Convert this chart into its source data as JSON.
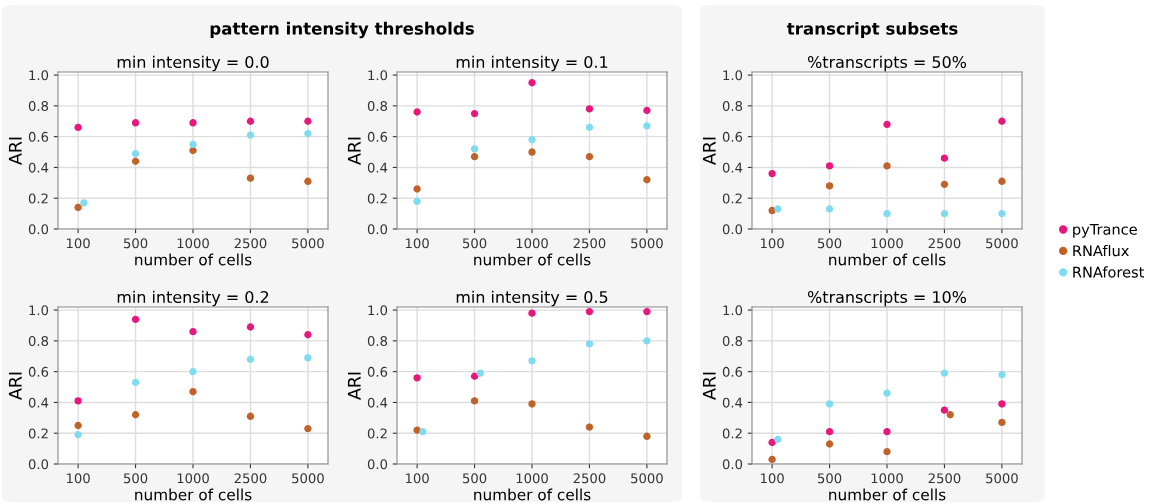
{
  "chart_data": [
    {
      "type": "scatter",
      "title": "min intensity = 0.0",
      "xlabel": "number of cells",
      "ylabel": "ARI",
      "annotations": [
        "pattern intensity thresholds"
      ],
      "categories": [
        "100",
        "500",
        "1000",
        "2500",
        "5000"
      ],
      "ylim": [
        0,
        1.02
      ],
      "yticks": [
        {
          "value": 0,
          "label": "0.0"
        },
        {
          "value": 0.2,
          "label": "0.2"
        },
        {
          "value": 0.4,
          "label": "0.4"
        },
        {
          "value": 0.6,
          "label": "0.6"
        },
        {
          "value": 0.8,
          "label": "0.8"
        },
        {
          "value": 1,
          "label": "1.0"
        }
      ],
      "grid": true,
      "marker": "circle",
      "series": [
        {
          "color": "#e8177d",
          "values": [
            0.66,
            0.69,
            0.69,
            0.7,
            0.7
          ]
        },
        {
          "color": "#c0622a",
          "values": [
            0.14,
            0.44,
            0.51,
            0.33,
            0.31
          ]
        },
        {
          "color": "#7fdcf0",
          "values": [
            0.17,
            0.49,
            0.55,
            0.61,
            0.62
          ]
        }
      ]
    },
    {
      "type": "scatter",
      "title": "min intensity = 0.1",
      "xlabel": "number of cells",
      "ylabel": "ARI",
      "categories": [
        "100",
        "500",
        "1000",
        "2500",
        "5000"
      ],
      "ylim": [
        0,
        1.02
      ],
      "yticks": [
        {
          "value": 0,
          "label": "0.0"
        },
        {
          "value": 0.2,
          "label": "0.2"
        },
        {
          "value": 0.4,
          "label": "0.4"
        },
        {
          "value": 0.6,
          "label": "0.6"
        },
        {
          "value": 0.8,
          "label": "0.8"
        },
        {
          "value": 1,
          "label": "1.0"
        }
      ],
      "grid": true,
      "marker": "circle",
      "series": [
        {
          "color": "#e8177d",
          "values": [
            0.76,
            0.75,
            0.95,
            0.78,
            0.77
          ]
        },
        {
          "color": "#c0622a",
          "values": [
            0.26,
            0.47,
            0.5,
            0.47,
            0.32
          ]
        },
        {
          "color": "#7fdcf0",
          "values": [
            0.18,
            0.52,
            0.58,
            0.66,
            0.67
          ]
        }
      ]
    },
    {
      "type": "scatter",
      "title": "%transcripts = 50%",
      "xlabel": "number of cells",
      "ylabel": "ARI",
      "annotations": [
        "transcript subsets"
      ],
      "categories": [
        "100",
        "500",
        "1000",
        "2500",
        "5000"
      ],
      "ylim": [
        0,
        1.02
      ],
      "yticks": [
        {
          "value": 0,
          "label": "0.0"
        },
        {
          "value": 0.2,
          "label": "0.2"
        },
        {
          "value": 0.4,
          "label": "0.4"
        },
        {
          "value": 0.6,
          "label": "0.6"
        },
        {
          "value": 0.8,
          "label": "0.8"
        },
        {
          "value": 1,
          "label": "1.0"
        }
      ],
      "grid": true,
      "marker": "circle",
      "legend": "right",
      "series": [
        {
          "name": "pyTrance",
          "color": "#e8177d",
          "values": [
            0.36,
            0.41,
            0.68,
            0.46,
            0.7
          ]
        },
        {
          "name": "RNAflux",
          "color": "#c0622a",
          "values": [
            0.12,
            0.28,
            0.41,
            0.29,
            0.31
          ]
        },
        {
          "name": "RNAforest",
          "color": "#7fdcf0",
          "values": [
            0.13,
            0.13,
            0.1,
            0.1,
            0.1
          ]
        }
      ]
    },
    {
      "type": "scatter",
      "title": "min intensity = 0.2",
      "xlabel": "number of cells",
      "ylabel": "ARI",
      "categories": [
        "100",
        "500",
        "1000",
        "2500",
        "5000"
      ],
      "ylim": [
        0,
        1.02
      ],
      "yticks": [
        {
          "value": 0,
          "label": "0.0"
        },
        {
          "value": 0.2,
          "label": "0.2"
        },
        {
          "value": 0.4,
          "label": "0.4"
        },
        {
          "value": 0.6,
          "label": "0.6"
        },
        {
          "value": 0.8,
          "label": "0.8"
        },
        {
          "value": 1,
          "label": "1.0"
        }
      ],
      "grid": true,
      "marker": "circle",
      "series": [
        {
          "color": "#e8177d",
          "values": [
            0.41,
            0.94,
            0.86,
            0.89,
            0.84
          ]
        },
        {
          "color": "#c0622a",
          "values": [
            0.25,
            0.32,
            0.47,
            0.31,
            0.23
          ]
        },
        {
          "color": "#7fdcf0",
          "values": [
            0.19,
            0.53,
            0.6,
            0.68,
            0.69
          ]
        }
      ]
    },
    {
      "type": "scatter",
      "title": "min intensity = 0.5",
      "xlabel": "number of cells",
      "ylabel": "ARI",
      "categories": [
        "100",
        "500",
        "1000",
        "2500",
        "5000"
      ],
      "ylim": [
        0,
        1.02
      ],
      "yticks": [
        {
          "value": 0,
          "label": "0.0"
        },
        {
          "value": 0.2,
          "label": "0.2"
        },
        {
          "value": 0.4,
          "label": "0.4"
        },
        {
          "value": 0.6,
          "label": "0.6"
        },
        {
          "value": 0.8,
          "label": "0.8"
        },
        {
          "value": 1,
          "label": "1.0"
        }
      ],
      "grid": true,
      "marker": "circle",
      "series": [
        {
          "color": "#e8177d",
          "values": [
            0.56,
            0.57,
            0.98,
            0.99,
            0.99
          ]
        },
        {
          "color": "#c0622a",
          "values": [
            0.22,
            0.41,
            0.39,
            0.24,
            0.18
          ]
        },
        {
          "color": "#7fdcf0",
          "values": [
            0.21,
            0.59,
            0.67,
            0.78,
            0.8
          ]
        }
      ]
    },
    {
      "type": "scatter",
      "title": "%transcripts = 10%",
      "xlabel": "number of cells",
      "ylabel": "ARI",
      "categories": [
        "100",
        "500",
        "1000",
        "2500",
        "5000"
      ],
      "ylim": [
        0,
        1.02
      ],
      "yticks": [
        {
          "value": 0,
          "label": "0.0"
        },
        {
          "value": 0.2,
          "label": "0.2"
        },
        {
          "value": 0.4,
          "label": "0.4"
        },
        {
          "value": 0.6,
          "label": "0.6"
        },
        {
          "value": 0.8,
          "label": "0.8"
        },
        {
          "value": 1,
          "label": "1.0"
        }
      ],
      "grid": true,
      "marker": "circle",
      "series": [
        {
          "color": "#e8177d",
          "values": [
            0.14,
            0.21,
            0.21,
            0.35,
            0.39
          ]
        },
        {
          "color": "#c0622a",
          "values": [
            0.03,
            0.13,
            0.08,
            0.32,
            0.27
          ]
        },
        {
          "color": "#7fdcf0",
          "values": [
            0.16,
            0.39,
            0.46,
            0.59,
            0.58
          ]
        }
      ]
    }
  ]
}
